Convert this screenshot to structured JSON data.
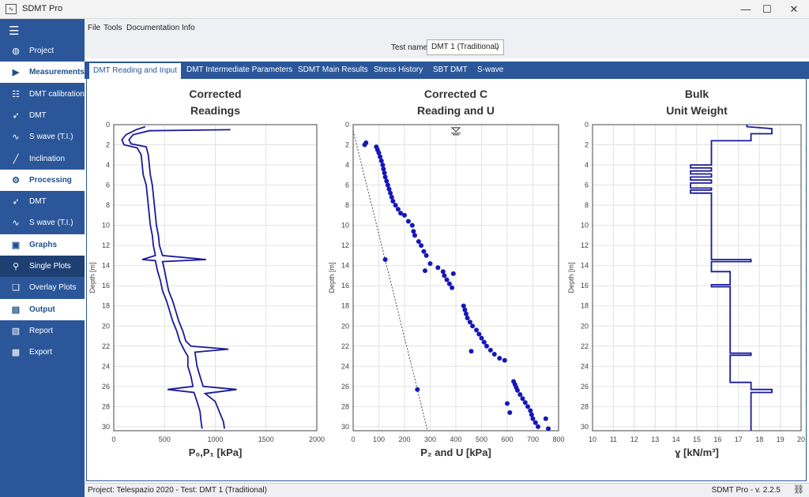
{
  "window": {
    "title": "SDMT Pro"
  },
  "menu": [
    "File",
    "Tools",
    "Documentation",
    "Info"
  ],
  "test": {
    "label": "Test name",
    "value": "DMT 1 (Traditional)"
  },
  "tabs": [
    "DMT Reading and Input",
    "DMT Intermediate Parameters",
    "SDMT Main Results",
    "Stress History",
    "SBT DMT",
    "S-wave"
  ],
  "sidebar": {
    "items": [
      {
        "label": "Project",
        "icon": "globe-icon",
        "kind": "item"
      },
      {
        "label": "Measurements",
        "icon": "play-icon",
        "kind": "head"
      },
      {
        "label": "DMT calibration",
        "icon": "sliders-icon",
        "kind": "item"
      },
      {
        "label": "DMT",
        "icon": "rocket-icon",
        "kind": "item"
      },
      {
        "label": "S wave (T.I.)",
        "icon": "wave-icon",
        "kind": "item"
      },
      {
        "label": "Inclination",
        "icon": "slash-icon",
        "kind": "item"
      },
      {
        "label": "Processing",
        "icon": "gears-icon",
        "kind": "head"
      },
      {
        "label": "DMT",
        "icon": "rocket-icon",
        "kind": "item"
      },
      {
        "label": "S wave (T.I.)",
        "icon": "wave-icon",
        "kind": "item"
      },
      {
        "label": "Graphs",
        "icon": "image-icon",
        "kind": "head"
      },
      {
        "label": "Single Plots",
        "icon": "pin-icon",
        "kind": "selected"
      },
      {
        "label": "Overlay Plots",
        "icon": "layers-icon",
        "kind": "item"
      },
      {
        "label": "Output",
        "icon": "file-icon",
        "kind": "head"
      },
      {
        "label": "Report",
        "icon": "pdf-icon",
        "kind": "item"
      },
      {
        "label": "Export",
        "icon": "excel-icon",
        "kind": "item"
      }
    ]
  },
  "status": {
    "left": "Project: Telespazio 2020 - Test: DMT 1 (Traditional)",
    "right": "SDMT Pro - v. 2.2.5"
  },
  "chart_data": [
    {
      "type": "line",
      "title": [
        "Corrected",
        "Readings"
      ],
      "xlabel": "P₀,P₁ [kPa]",
      "ylabel": "Depth [m]",
      "xlim": [
        0,
        2000
      ],
      "ylim": [
        0,
        30.4
      ],
      "y_inverted": true,
      "xticks": [
        0,
        500,
        1000,
        1500,
        2000
      ],
      "yticks": [
        0,
        2,
        4,
        6,
        8,
        10,
        12,
        14,
        16,
        18,
        20,
        22,
        24,
        26,
        28,
        30
      ],
      "grid": true,
      "series": [
        {
          "role": "P0",
          "color": "#1a1a9a",
          "points": [
            [
              310,
              0.2
            ],
            [
              220,
              0.5
            ],
            [
              120,
              1.0
            ],
            [
              80,
              1.5
            ],
            [
              100,
              2.0
            ],
            [
              230,
              2.3
            ],
            [
              270,
              3
            ],
            [
              280,
              4
            ],
            [
              290,
              5
            ],
            [
              320,
              6
            ],
            [
              330,
              7
            ],
            [
              340,
              8
            ],
            [
              350,
              9
            ],
            [
              360,
              10
            ],
            [
              380,
              11
            ],
            [
              390,
              12
            ],
            [
              410,
              13
            ],
            [
              280,
              13.4
            ],
            [
              410,
              13.5
            ],
            [
              430,
              14.5
            ],
            [
              460,
              15.5
            ],
            [
              480,
              16.5
            ],
            [
              520,
              17.5
            ],
            [
              550,
              18.5
            ],
            [
              580,
              19.5
            ],
            [
              620,
              20.5
            ],
            [
              650,
              21.5
            ],
            [
              700,
              22.5
            ],
            [
              730,
              23.0
            ],
            [
              730,
              24
            ],
            [
              760,
              25
            ],
            [
              780,
              26
            ],
            [
              530,
              26.3
            ],
            [
              790,
              26.6
            ],
            [
              820,
              27.5
            ],
            [
              850,
              28.5
            ],
            [
              860,
              29.5
            ],
            [
              870,
              30.2
            ]
          ]
        },
        {
          "role": "P1",
          "color": "#1a1a9a",
          "points": [
            [
              1150,
              0.5
            ],
            [
              350,
              0.6
            ],
            [
              190,
              1.0
            ],
            [
              150,
              1.5
            ],
            [
              170,
              1.9
            ],
            [
              320,
              2.2
            ],
            [
              340,
              3
            ],
            [
              350,
              4
            ],
            [
              360,
              5
            ],
            [
              380,
              6
            ],
            [
              390,
              7
            ],
            [
              400,
              8
            ],
            [
              410,
              9
            ],
            [
              420,
              10
            ],
            [
              440,
              11
            ],
            [
              450,
              12
            ],
            [
              480,
              13
            ],
            [
              910,
              13.4
            ],
            [
              480,
              13.6
            ],
            [
              500,
              14.5
            ],
            [
              520,
              15.5
            ],
            [
              540,
              16.5
            ],
            [
              580,
              17.5
            ],
            [
              610,
              18.5
            ],
            [
              640,
              19.5
            ],
            [
              680,
              20.5
            ],
            [
              710,
              21.5
            ],
            [
              760,
              22
            ],
            [
              1130,
              22.3
            ],
            [
              800,
              22.6
            ],
            [
              820,
              24
            ],
            [
              850,
              25
            ],
            [
              880,
              26
            ],
            [
              1210,
              26.3
            ],
            [
              900,
              26.7
            ],
            [
              1000,
              27.5
            ],
            [
              1040,
              28.5
            ],
            [
              1080,
              29.5
            ],
            [
              1090,
              30.2
            ]
          ]
        }
      ]
    },
    {
      "type": "scatter",
      "title": [
        "Corrected C",
        "Reading and U"
      ],
      "xlabel": "P₂ and U [kPa]",
      "ylabel": "Depth [m]",
      "xlim": [
        0,
        800
      ],
      "ylim": [
        0,
        30.4
      ],
      "y_inverted": true,
      "xticks": [
        0,
        100,
        200,
        300,
        400,
        500,
        600,
        700,
        800
      ],
      "yticks": [
        0,
        2,
        4,
        6,
        8,
        10,
        12,
        14,
        16,
        18,
        20,
        22,
        24,
        26,
        28,
        30
      ],
      "grid": true,
      "water_table": {
        "x": 400,
        "depth": 0.3
      },
      "u0_line": {
        "x": [
          0,
          290
        ],
        "y": [
          0.6,
          30.4
        ]
      },
      "points": [
        [
          45,
          2
        ],
        [
          50,
          1.8
        ],
        [
          90,
          2.2
        ],
        [
          95,
          2.5
        ],
        [
          100,
          2.8
        ],
        [
          105,
          3.2
        ],
        [
          110,
          3.6
        ],
        [
          115,
          4
        ],
        [
          118,
          4.4
        ],
        [
          122,
          4.8
        ],
        [
          125,
          5.2
        ],
        [
          130,
          5.6
        ],
        [
          135,
          6
        ],
        [
          140,
          6.4
        ],
        [
          145,
          6.8
        ],
        [
          150,
          7.2
        ],
        [
          155,
          7.6
        ],
        [
          165,
          8
        ],
        [
          175,
          8.4
        ],
        [
          185,
          8.8
        ],
        [
          200,
          9
        ],
        [
          215,
          9.6
        ],
        [
          230,
          10
        ],
        [
          235,
          10.6
        ],
        [
          240,
          11
        ],
        [
          255,
          11.6
        ],
        [
          265,
          12
        ],
        [
          275,
          12.6
        ],
        [
          285,
          13
        ],
        [
          125,
          13.4
        ],
        [
          300,
          13.8
        ],
        [
          330,
          14.2
        ],
        [
          350,
          14.6
        ],
        [
          355,
          15
        ],
        [
          365,
          15.4
        ],
        [
          375,
          15.8
        ],
        [
          385,
          16.2
        ],
        [
          390,
          14.8
        ],
        [
          280,
          14.5
        ],
        [
          430,
          18
        ],
        [
          435,
          18.4
        ],
        [
          440,
          18.8
        ],
        [
          445,
          19.2
        ],
        [
          455,
          19.6
        ],
        [
          465,
          20
        ],
        [
          480,
          20.4
        ],
        [
          490,
          20.8
        ],
        [
          500,
          21.2
        ],
        [
          510,
          21.6
        ],
        [
          520,
          22
        ],
        [
          535,
          22.4
        ],
        [
          550,
          22.8
        ],
        [
          570,
          23.2
        ],
        [
          590,
          23.4
        ],
        [
          460,
          22.5
        ],
        [
          625,
          25.5
        ],
        [
          630,
          25.8
        ],
        [
          635,
          26.1
        ],
        [
          640,
          26.4
        ],
        [
          650,
          26.8
        ],
        [
          660,
          27.2
        ],
        [
          670,
          27.6
        ],
        [
          680,
          28
        ],
        [
          690,
          28.4
        ],
        [
          695,
          28.8
        ],
        [
          700,
          29.2
        ],
        [
          710,
          29.6
        ],
        [
          720,
          30
        ],
        [
          750,
          29.2
        ],
        [
          760,
          30.2
        ],
        [
          250,
          26.3
        ],
        [
          600,
          27.7
        ],
        [
          610,
          28.6
        ]
      ]
    },
    {
      "type": "line",
      "title": [
        "Bulk",
        "Unit Weight"
      ],
      "xlabel": "ɣ [kN/m³]",
      "ylabel": "Depth [m]",
      "xlim": [
        10,
        20
      ],
      "ylim": [
        0,
        30.4
      ],
      "y_inverted": true,
      "xticks": [
        10,
        11,
        12,
        13,
        14,
        15,
        16,
        17,
        18,
        19,
        20
      ],
      "yticks": [
        0,
        2,
        4,
        6,
        8,
        10,
        12,
        14,
        16,
        18,
        20,
        22,
        24,
        26,
        28,
        30
      ],
      "grid": true,
      "series": [
        {
          "role": "gamma",
          "color": "#1a1a9a",
          "points": [
            [
              17.4,
              0
            ],
            [
              17.4,
              0.2
            ],
            [
              18.6,
              0.4
            ],
            [
              18.6,
              0.9
            ],
            [
              17.6,
              0.9
            ],
            [
              17.6,
              1.6
            ],
            [
              15.7,
              1.6
            ],
            [
              15.7,
              4.0
            ],
            [
              14.7,
              4.0
            ],
            [
              14.7,
              4.3
            ],
            [
              15.7,
              4.3
            ],
            [
              15.7,
              4.6
            ],
            [
              14.7,
              4.6
            ],
            [
              14.7,
              4.9
            ],
            [
              15.7,
              4.9
            ],
            [
              15.7,
              5.2
            ],
            [
              14.7,
              5.2
            ],
            [
              14.7,
              5.5
            ],
            [
              15.7,
              5.5
            ],
            [
              15.7,
              5.8
            ],
            [
              14.7,
              5.8
            ],
            [
              14.7,
              6.3
            ],
            [
              15.7,
              6.3
            ],
            [
              15.7,
              6.5
            ],
            [
              14.7,
              6.5
            ],
            [
              14.7,
              6.8
            ],
            [
              15.7,
              6.8
            ],
            [
              15.7,
              13.4
            ],
            [
              17.6,
              13.4
            ],
            [
              17.6,
              13.6
            ],
            [
              15.7,
              13.6
            ],
            [
              15.7,
              14.6
            ],
            [
              16.6,
              14.6
            ],
            [
              16.6,
              15.9
            ],
            [
              15.7,
              15.9
            ],
            [
              15.7,
              16.1
            ],
            [
              16.6,
              16.1
            ],
            [
              16.6,
              22.7
            ],
            [
              17.6,
              22.7
            ],
            [
              17.6,
              22.9
            ],
            [
              16.6,
              22.9
            ],
            [
              16.6,
              25.6
            ],
            [
              17.6,
              25.6
            ],
            [
              17.6,
              26.3
            ],
            [
              18.6,
              26.3
            ],
            [
              18.6,
              26.6
            ],
            [
              17.6,
              26.6
            ],
            [
              17.6,
              30.4
            ]
          ]
        }
      ]
    }
  ]
}
